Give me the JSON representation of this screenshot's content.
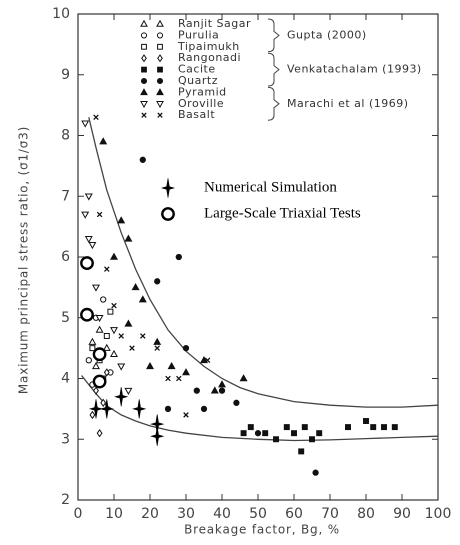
{
  "chart_data": {
    "type": "scatter",
    "xlabel": "Breakage factor, Bg, %",
    "ylabel": "Maximum principal stress ratio, (σ1/σ3)",
    "xlim": [
      0,
      100
    ],
    "ylim": [
      2,
      10
    ],
    "xticks": [
      0,
      10,
      20,
      30,
      40,
      50,
      60,
      70,
      80,
      90,
      100
    ],
    "yticks": [
      2,
      3,
      4,
      5,
      6,
      7,
      8,
      9,
      10
    ],
    "grid": false,
    "legend_groups": [
      "Gupta (2000)",
      "Venkatachalam (1993)",
      "Marachi et al (1969)"
    ],
    "series": [
      {
        "name": "Ranjit Sagar",
        "marker": "triangle-open",
        "color": "#000",
        "x": [
          4,
          6,
          8,
          10,
          5
        ],
        "values": [
          4.6,
          4.8,
          4.5,
          4.4,
          4.2
        ]
      },
      {
        "name": "Purulia",
        "marker": "circle-open",
        "color": "#000",
        "x": [
          3,
          5,
          7,
          4,
          9
        ],
        "values": [
          4.3,
          5.0,
          5.3,
          3.9,
          4.1
        ]
      },
      {
        "name": "Tipaimukh",
        "marker": "square-open",
        "color": "#000",
        "x": [
          6,
          8,
          9,
          4,
          7
        ],
        "values": [
          4.3,
          4.7,
          5.1,
          4.5,
          4.0
        ]
      },
      {
        "name": "Rangonadi",
        "marker": "diamond-open",
        "color": "#000",
        "x": [
          6,
          4,
          7,
          8,
          5
        ],
        "values": [
          3.1,
          3.4,
          3.6,
          4.1,
          3.8
        ]
      },
      {
        "name": "Cacite",
        "marker": "square-filled",
        "color": "#000",
        "x": [
          46,
          48,
          52,
          55,
          58,
          60,
          63,
          65,
          67,
          75,
          80,
          82,
          85,
          88,
          62
        ],
        "values": [
          3.1,
          3.2,
          3.1,
          3.0,
          3.2,
          3.1,
          3.2,
          3.0,
          3.1,
          3.2,
          3.3,
          3.2,
          3.2,
          3.2,
          2.8
        ]
      },
      {
        "name": "Quartz",
        "marker": "circle-filled",
        "color": "#000",
        "x": [
          18,
          28,
          22,
          30,
          33,
          40,
          44,
          50,
          66,
          35,
          25
        ],
        "values": [
          7.6,
          6.0,
          5.6,
          4.5,
          3.8,
          3.8,
          3.6,
          3.1,
          2.45,
          3.5,
          3.5
        ]
      },
      {
        "name": "Pyramid",
        "marker": "triangle-filled",
        "color": "#000",
        "x": [
          7,
          12,
          14,
          10,
          16,
          18,
          22,
          14,
          26,
          30,
          35,
          40,
          46,
          38,
          20
        ],
        "values": [
          7.9,
          6.6,
          6.3,
          6.0,
          5.5,
          5.3,
          4.6,
          4.9,
          4.2,
          4.1,
          4.3,
          3.9,
          4.0,
          3.8,
          4.2
        ]
      },
      {
        "name": "Oroville",
        "marker": "triangle-down-open",
        "color": "#000",
        "x": [
          2,
          3,
          2,
          3,
          4,
          5,
          6,
          10,
          14,
          12
        ],
        "values": [
          8.2,
          7.0,
          6.7,
          6.3,
          6.2,
          5.5,
          5.0,
          4.8,
          3.8,
          4.2
        ]
      },
      {
        "name": "Basalt",
        "marker": "x",
        "color": "#000",
        "x": [
          5,
          6,
          8,
          10,
          12,
          15,
          18,
          22,
          28,
          30,
          36,
          25
        ],
        "values": [
          8.3,
          6.7,
          5.8,
          5.2,
          4.7,
          4.5,
          4.7,
          4.5,
          4.0,
          3.4,
          4.3,
          4.0
        ]
      },
      {
        "name": "Numerical Simulation",
        "marker": "star",
        "color": "#000",
        "x": [
          5,
          8,
          12,
          17,
          22,
          22
        ],
        "values": [
          3.5,
          3.5,
          3.7,
          3.5,
          3.25,
          3.05
        ]
      },
      {
        "name": "Large-Scale Triaxial Tests",
        "marker": "circle-bold",
        "color": "#000",
        "x": [
          2.5,
          2.5,
          6,
          6
        ],
        "values": [
          5.9,
          5.05,
          4.4,
          3.95
        ]
      }
    ],
    "curves": [
      {
        "x": [
          3,
          5,
          8,
          12,
          16,
          20,
          25,
          30,
          35,
          40,
          45,
          50,
          60,
          70,
          80,
          90,
          100
        ],
        "values": [
          8.3,
          7.8,
          7.1,
          6.4,
          5.8,
          5.3,
          4.8,
          4.45,
          4.2,
          4.0,
          3.85,
          3.75,
          3.62,
          3.56,
          3.53,
          3.53,
          3.56
        ]
      },
      {
        "x": [
          1,
          3,
          5,
          8,
          12,
          16,
          20,
          25,
          30,
          40,
          50,
          60,
          70,
          80,
          90,
          100
        ],
        "values": [
          4.05,
          3.9,
          3.75,
          3.55,
          3.4,
          3.3,
          3.22,
          3.15,
          3.1,
          3.03,
          3.0,
          2.98,
          2.99,
          3.01,
          3.03,
          3.05
        ]
      }
    ]
  }
}
